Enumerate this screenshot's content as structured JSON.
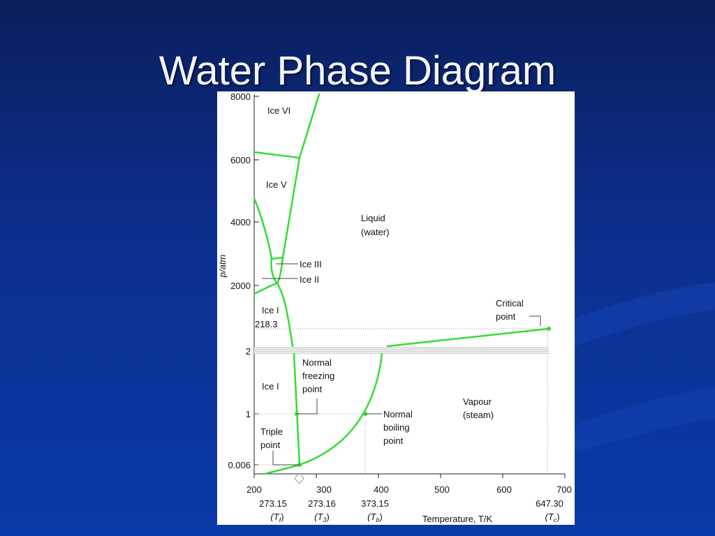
{
  "slide": {
    "title": "Water Phase Diagram"
  },
  "diagram": {
    "colors": {
      "curve": "#33dd33",
      "background": "#ffffff",
      "text": "#111111"
    },
    "ylabel": "p/atm",
    "xlabel": "Temperature, T/K",
    "y_ticks": [
      "8000",
      "6000",
      "4000",
      "2000",
      "2",
      "1",
      "0.006"
    ],
    "x_ticks": [
      "200",
      "300",
      "400",
      "500",
      "600",
      "700"
    ],
    "x_markers": [
      {
        "value": "273.15",
        "symbol": "(T",
        "sub": "f",
        "close": ")"
      },
      {
        "value": "273.16",
        "symbol": "(T",
        "sub": "3",
        "close": ")"
      },
      {
        "value": "373.15",
        "symbol": "(T",
        "sub": "b",
        "close": ")"
      },
      {
        "value": "647.30",
        "symbol": "(T",
        "sub": "c",
        "close": ")"
      }
    ],
    "regions": {
      "ice_vi": "Ice VI",
      "ice_v": "Ice V",
      "liquid": [
        "Liquid",
        "(water)"
      ],
      "ice_iii": "Ice III",
      "ice_ii": "Ice II",
      "ice_i_upper": "Ice I",
      "ice_i_lower": "Ice I",
      "vapour": [
        "Vapour",
        "(steam)"
      ]
    },
    "annotations": {
      "critical_point": [
        "Critical",
        "point"
      ],
      "pressure_218": "218.3",
      "normal_freezing": [
        "Normal",
        "freezing",
        "point"
      ],
      "normal_boiling": [
        "Normal",
        "boiling",
        "point"
      ],
      "triple_point": [
        "Triple",
        "point"
      ]
    }
  }
}
